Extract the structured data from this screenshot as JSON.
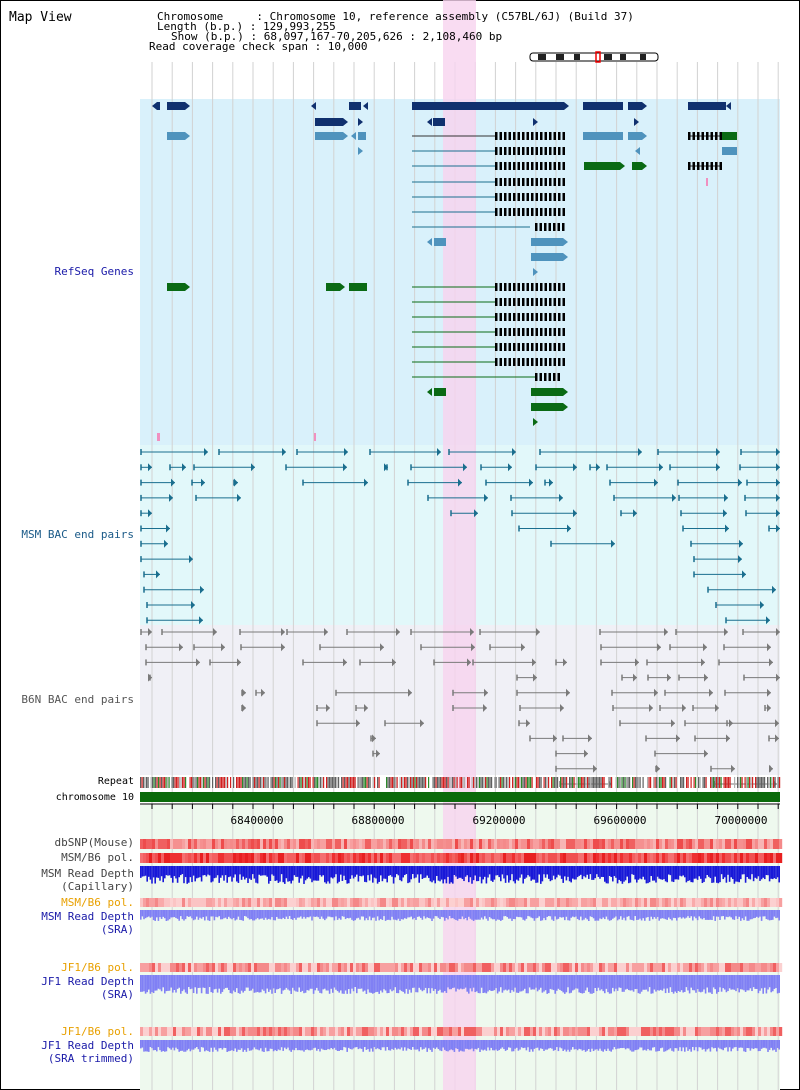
{
  "page": {
    "title": "Map View"
  },
  "info": {
    "chromosome_line": "Chromosome     : Chromosome 10, reference assembly (C57BL/6J) (Build 37)",
    "length_line": "Length (b.p.) : 129,993,255",
    "show_line": "Show (b.p.) : 68,097,167-70,205,626 : 2,108,460 bp",
    "span_line": "Read coverage check span : 10,000"
  },
  "tracks": {
    "refseq": "RefSeq Genes",
    "msm_bac": "MSM BAC end pairs",
    "b6n_bac": "B6N BAC end pairs",
    "repeat": "Repeat",
    "chromosome": "chromosome 10",
    "dbsnp": "dbSNP(Mouse)",
    "msm_pol_1": "MSM/B6 pol.",
    "msm_depth_cap_1": "MSM Read Depth",
    "msm_depth_cap_2": "(Capillary)",
    "msm_pol_2": "MSM/B6 pol.",
    "msm_depth_sra_1": "MSM Read Depth",
    "msm_depth_sra_2": "(SRA)",
    "jf1_pol_1": "JF1/B6 pol.",
    "jf1_depth_sra_1": "JF1 Read Depth",
    "jf1_depth_sra_2": "(SRA)",
    "jf1_pol_2": "JF1/B6 pol.",
    "jf1_depth_trim_1": "JF1 Read Depth",
    "jf1_depth_trim_2": "(SRA trimmed)"
  },
  "axis": {
    "ticks": [
      "68400000",
      "68800000",
      "69200000",
      "69600000",
      "70000000"
    ]
  },
  "colors": {
    "refseq_bg": "#d9f1fb",
    "msm_bg": "#e2f8fa",
    "b6n_bg": "#f0f0f6",
    "bottom_bg": "#eef9ee",
    "highlight": "#f7d3ef",
    "gene_dark": "#10306e",
    "gene_mid": "#4f93bd",
    "gene_green": "#0a6a14",
    "bac_teal": "#1a6e8e",
    "bac_gray": "#7a7a7a",
    "depth_blue": "#1818d8",
    "depth_light": "#8080f4",
    "chrom_green": "#0a6a0a"
  }
}
